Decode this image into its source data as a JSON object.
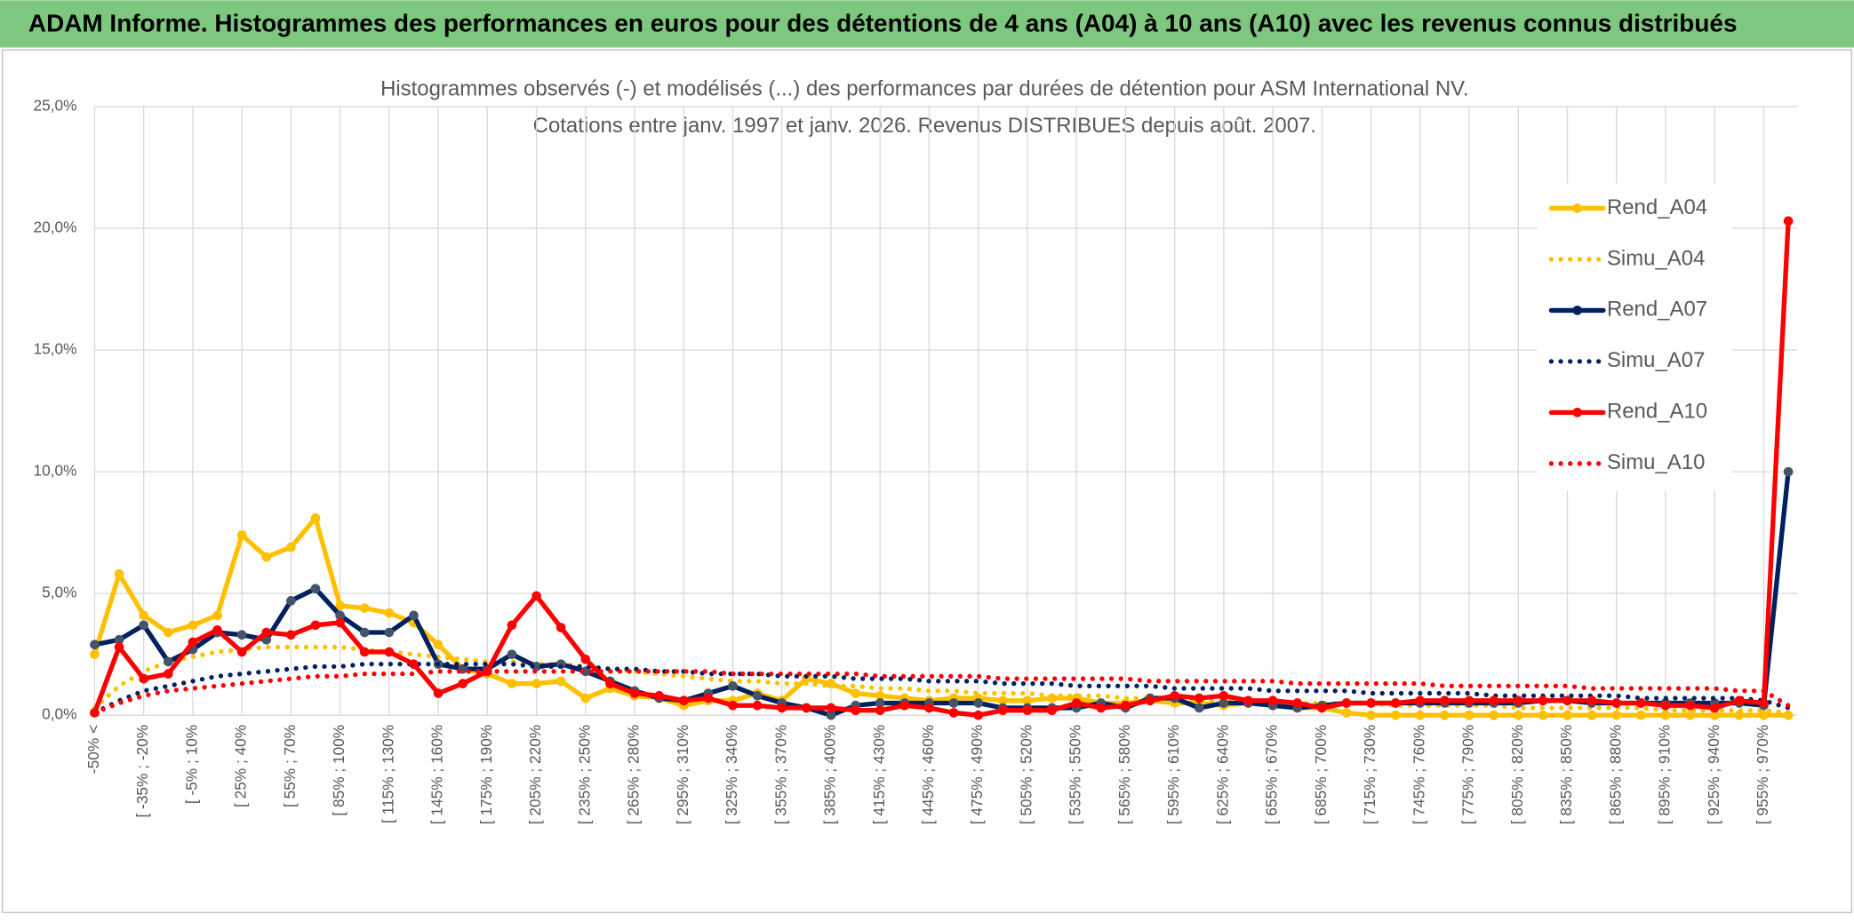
{
  "header": {
    "title": "ADAM Informe. Histogrammes des performances en euros pour des détentions de 4 ans (A04) à 10 ans (A10) avec les revenus connus distribués"
  },
  "chart_data": {
    "type": "line",
    "title": "Histogrammes observés (-) et modélisés (...) des performances par durées de détention pour ASM International NV.",
    "subtitle": "Cotations entre janv. 1997 et janv. 2026. Revenus DISTRIBUES depuis août. 2007.",
    "categories": [
      "-50% <",
      null,
      "[ -35% ; -20%",
      null,
      "[ -5% ; 10%",
      null,
      "[ 25% ; 40%",
      null,
      "[ 55% ; 70%",
      null,
      "[ 85% ; 100%",
      null,
      "[ 115% ; 130%",
      null,
      "[ 145% ; 160%",
      null,
      "[ 175% ; 190%",
      null,
      "[ 205% ; 220%",
      null,
      "[ 235% ; 250%",
      null,
      "[ 265% ; 280%",
      null,
      "[ 295% ; 310%",
      null,
      "[ 325% ; 340%",
      null,
      "[ 355% ; 370%",
      null,
      "[ 385% ; 400%",
      null,
      "[ 415% ; 430%",
      null,
      "[ 445% ; 460%",
      null,
      "[ 475% ; 490%",
      null,
      "[ 505% ; 520%",
      null,
      "[ 535% ; 550%",
      null,
      "[ 565% ; 580%",
      null,
      "[ 595% ; 610%",
      null,
      "[ 625% ; 640%",
      null,
      "[ 655% ; 670%",
      null,
      "[ 685% ; 700%",
      null,
      "[ 715% ; 730%",
      null,
      "[ 745% ; 760%",
      null,
      "[ 775% ; 790%",
      null,
      "[ 805% ; 820%",
      null,
      "[ 835% ; 850%",
      null,
      "[ 865% ; 880%",
      null,
      "[ 895% ; 910%",
      null,
      "[ 925% ; 940%",
      null,
      "[ 955% ; 970%",
      null
    ],
    "series": [
      {
        "name": "Rend_A04",
        "color": "#ffc000",
        "dash": "solid",
        "marker": true,
        "values": [
          2.5,
          5.8,
          4.1,
          3.4,
          3.7,
          4.1,
          7.4,
          6.5,
          6.9,
          8.1,
          4.5,
          4.4,
          4.2,
          3.8,
          2.9,
          1.9,
          1.7,
          1.3,
          1.3,
          1.4,
          0.7,
          1.1,
          0.8,
          0.7,
          0.4,
          0.6,
          0.6,
          0.9,
          0.6,
          1.5,
          1.3,
          0.9,
          0.8,
          0.7,
          0.6,
          0.7,
          0.7,
          0.6,
          0.6,
          0.7,
          0.7,
          0.5,
          0.5,
          0.6,
          0.5,
          0.5,
          0.4,
          0.5,
          0.4,
          0.3,
          0.3,
          0.1,
          0,
          0,
          0,
          0,
          0,
          0,
          0,
          0,
          0,
          0,
          0,
          0,
          0,
          0,
          0,
          0,
          0,
          0
        ]
      },
      {
        "name": "Simu_A04",
        "color": "#ffc000",
        "dash": "dotted",
        "marker": false,
        "values": [
          0.3,
          1.2,
          1.8,
          2.2,
          2.4,
          2.6,
          2.7,
          2.8,
          2.8,
          2.8,
          2.8,
          2.7,
          2.6,
          2.5,
          2.4,
          2.3,
          2.2,
          2.2,
          2.1,
          2.1,
          2.0,
          1.9,
          1.8,
          1.7,
          1.6,
          1.5,
          1.4,
          1.4,
          1.3,
          1.3,
          1.2,
          1.2,
          1.1,
          1.1,
          1.0,
          1.0,
          0.9,
          0.9,
          0.9,
          0.8,
          0.8,
          0.8,
          0.7,
          0.7,
          0.7,
          0.6,
          0.6,
          0.6,
          0.6,
          0.5,
          0.5,
          0.5,
          0.5,
          0.4,
          0.4,
          0.4,
          0.4,
          0.4,
          0.3,
          0.3,
          0.3,
          0.3,
          0.3,
          0.3,
          0.2,
          0.2,
          0.2,
          0.2,
          0.2,
          0.1
        ]
      },
      {
        "name": "Rend_A07",
        "color": "#002060",
        "dash": "solid",
        "marker": true,
        "values": [
          2.9,
          3.1,
          3.7,
          2.2,
          2.7,
          3.4,
          3.3,
          3.1,
          4.7,
          5.2,
          4.1,
          3.4,
          3.4,
          4.1,
          2.1,
          1.9,
          1.9,
          2.5,
          2.0,
          2.1,
          1.8,
          1.4,
          1.0,
          0.7,
          0.6,
          0.9,
          1.2,
          0.8,
          0.5,
          0.3,
          0.0,
          0.4,
          0.5,
          0.5,
          0.5,
          0.5,
          0.5,
          0.3,
          0.3,
          0.3,
          0.3,
          0.5,
          0.3,
          0.7,
          0.7,
          0.3,
          0.5,
          0.5,
          0.4,
          0.3,
          0.4,
          0.5,
          0.5,
          0.5,
          0.5,
          0.5,
          0.5,
          0.5,
          0.5,
          0.6,
          0.6,
          0.5,
          0.5,
          0.5,
          0.5,
          0.5,
          0.5,
          0.5,
          0.4,
          10.0
        ]
      },
      {
        "name": "Simu_A07",
        "color": "#002060",
        "dash": "dotted",
        "marker": false,
        "values": [
          0.1,
          0.6,
          1.0,
          1.2,
          1.4,
          1.6,
          1.7,
          1.8,
          1.9,
          2.0,
          2.0,
          2.1,
          2.1,
          2.1,
          2.1,
          2.1,
          2.1,
          2.1,
          2.0,
          2.0,
          2.0,
          1.9,
          1.9,
          1.8,
          1.8,
          1.7,
          1.7,
          1.7,
          1.6,
          1.6,
          1.6,
          1.5,
          1.5,
          1.5,
          1.4,
          1.4,
          1.4,
          1.3,
          1.3,
          1.3,
          1.2,
          1.2,
          1.2,
          1.2,
          1.1,
          1.1,
          1.1,
          1.1,
          1.0,
          1.0,
          1.0,
          1.0,
          0.9,
          0.9,
          0.9,
          0.9,
          0.9,
          0.8,
          0.8,
          0.8,
          0.8,
          0.8,
          0.8,
          0.7,
          0.7,
          0.7,
          0.7,
          0.7,
          0.6,
          0.3
        ]
      },
      {
        "name": "Rend_A10",
        "color": "#ff0000",
        "dash": "solid",
        "marker": true,
        "values": [
          0.1,
          2.8,
          1.5,
          1.7,
          3.0,
          3.5,
          2.6,
          3.4,
          3.3,
          3.7,
          3.8,
          2.6,
          2.6,
          2.1,
          0.9,
          1.3,
          1.8,
          3.7,
          4.9,
          3.6,
          2.3,
          1.3,
          0.9,
          0.8,
          0.6,
          0.7,
          0.4,
          0.4,
          0.3,
          0.3,
          0.3,
          0.2,
          0.2,
          0.4,
          0.3,
          0.1,
          0.0,
          0.2,
          0.2,
          0.2,
          0.5,
          0.3,
          0.4,
          0.6,
          0.8,
          0.7,
          0.8,
          0.6,
          0.6,
          0.5,
          0.3,
          0.5,
          0.5,
          0.5,
          0.6,
          0.6,
          0.6,
          0.6,
          0.6,
          0.6,
          0.6,
          0.6,
          0.5,
          0.5,
          0.4,
          0.4,
          0.3,
          0.6,
          0.5,
          20.3
        ]
      },
      {
        "name": "Simu_A10",
        "color": "#ff0000",
        "dash": "dotted",
        "marker": false,
        "values": [
          0.1,
          0.5,
          0.8,
          1.0,
          1.1,
          1.2,
          1.3,
          1.4,
          1.5,
          1.6,
          1.6,
          1.7,
          1.7,
          1.7,
          1.8,
          1.8,
          1.8,
          1.8,
          1.8,
          1.8,
          1.8,
          1.8,
          1.8,
          1.8,
          1.8,
          1.8,
          1.7,
          1.7,
          1.7,
          1.7,
          1.7,
          1.7,
          1.6,
          1.6,
          1.6,
          1.6,
          1.6,
          1.5,
          1.5,
          1.5,
          1.5,
          1.5,
          1.5,
          1.4,
          1.4,
          1.4,
          1.4,
          1.4,
          1.4,
          1.3,
          1.3,
          1.3,
          1.3,
          1.3,
          1.3,
          1.2,
          1.2,
          1.2,
          1.2,
          1.2,
          1.2,
          1.1,
          1.1,
          1.1,
          1.1,
          1.1,
          1.1,
          1.0,
          1.0,
          0.4
        ]
      }
    ],
    "ylim": [
      0,
      25
    ],
    "yticks": [
      {
        "value": 0,
        "label": "0,0%"
      },
      {
        "value": 5,
        "label": "5,0%"
      },
      {
        "value": 10,
        "label": "10,0%"
      },
      {
        "value": 15,
        "label": "15,0%"
      },
      {
        "value": 20,
        "label": "20,0%"
      },
      {
        "value": 25,
        "label": "25,0%"
      }
    ],
    "grid": true,
    "legend": "right"
  }
}
